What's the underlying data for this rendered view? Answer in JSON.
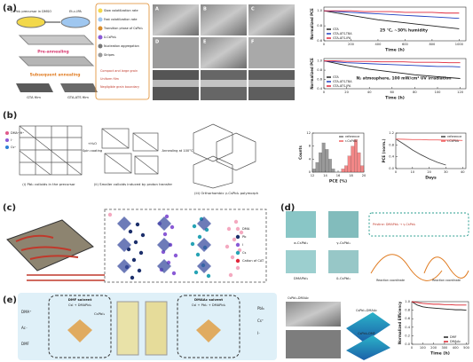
{
  "panels": {
    "a": {
      "label": "(a)",
      "precursor": "CsPbI₃ precursor in DMSO",
      "antisolvent": "Et-c-IPA",
      "pre": "Pre-annealing",
      "sub": "Subsequent annealing",
      "film1": "GTA film",
      "film2": "GTA-ATS film",
      "legend": [
        "Slow volatilization rate",
        "Fast volatilization rate",
        "Transition phase of CsPbI₃",
        "δ-CsPbI₃",
        "Nucleation aggregation",
        "Stripes"
      ],
      "outcomes": [
        "Compact and large grain",
        "Uniform film",
        "Negligible grain boundary"
      ],
      "sem": [
        "A",
        "B",
        "C",
        "D",
        "E",
        "F"
      ]
    },
    "b": {
      "label": "(b)",
      "steps": [
        "(i) PbI₂ colloids in the precursor",
        "(ii) Smaller colloids induced by proton transfer",
        "(iii) Orthorhombic γ-CsPbI₃ polymorph"
      ],
      "arrows": [
        "+H₂O",
        "Spin coating",
        "Annealing at 100°C"
      ],
      "ions": [
        "DMA⁺/H⁺",
        "I⁻",
        "Cs⁺"
      ]
    },
    "c": {
      "label": "(c)",
      "legend": [
        "DMA",
        "Pb",
        "I",
        "Cs",
        "Cation of CAT"
      ]
    },
    "d": {
      "label": "(d)",
      "phases": [
        "α-CsPbI₃",
        "γ-CsPbI₃",
        "DMAPbI₃",
        "δ-CsPbI₃"
      ],
      "route": "Pristine: DMAPbI₃ → γ-CsPbI₃",
      "xaxis": "Reaction coordinate"
    },
    "e": {
      "label": "(e)",
      "left_solvent": "DMF solvent",
      "left_mix": "CsI + DMAPbI₃",
      "right_solvent": "DMAAc solvent",
      "right_mix": "CsI + PbI₂ + DMAPbI₃",
      "species": [
        "DMA⁺",
        "Ac⁻",
        "DMF"
      ],
      "product": "CsPbI₃",
      "key": [
        "PbI₆",
        "Cs⁺",
        "I⁻"
      ],
      "sem": [
        "CsPbI₃-DMAAc",
        "CsPbI₃-DMF"
      ]
    }
  },
  "charts": [
    {
      "type": "line",
      "ylabel": "Normalized PCE",
      "xlabel": "Time (h)",
      "annotation": "25 °C, ~30% humidity",
      "legend": "lower left",
      "x": [
        0,
        100,
        200,
        300,
        400,
        500,
        600,
        700,
        800,
        900,
        1000
      ],
      "xlim": [
        0,
        1050
      ],
      "xticks": [
        0,
        200,
        400,
        600,
        800,
        1000
      ],
      "ylim": [
        0.6,
        1.05
      ],
      "yticks": [
        0.6,
        0.8,
        {
          "value": 1,
          "label": "1.0"
        }
      ],
      "series": [
        {
          "name": "GTA",
          "color": "#222222",
          "values": [
            1,
            0.97,
            0.94,
            0.91,
            0.88,
            0.86,
            0.84,
            0.82,
            0.8,
            0.78,
            0.76
          ]
        },
        {
          "name": "GTA-ATS-TBA",
          "color": "#1f3fbf",
          "values": [
            1,
            0.99,
            0.98,
            0.97,
            0.96,
            0.95,
            0.94,
            0.93,
            0.92,
            0.91,
            0.9
          ]
        },
        {
          "name": "GTA-ATS-IPA",
          "color": "#e0263a",
          "values": [
            1,
            1,
            1,
            0.99,
            0.99,
            0.99,
            0.98,
            0.98,
            0.98,
            0.97,
            0.97
          ]
        }
      ]
    },
    {
      "type": "line",
      "ylabel": "Normalized PCE",
      "xlabel": "Time (h)",
      "annotation": "N₂ atmosphere, 100 mW/cm² UV irradiation",
      "legend": "lower left",
      "x": [
        0,
        10,
        20,
        30,
        40,
        50,
        60,
        70,
        80,
        90,
        100,
        110,
        120
      ],
      "xlim": [
        0,
        125
      ],
      "xticks": [
        0,
        20,
        40,
        60,
        80,
        100,
        120
      ],
      "ylim": [
        0.4,
        1.05
      ],
      "yticks": [
        0.4,
        0.6,
        0.8,
        {
          "value": 1,
          "label": "1.0"
        }
      ],
      "series": [
        {
          "name": "GTA",
          "color": "#222222",
          "values": [
            1,
            0.95,
            0.9,
            0.86,
            0.82,
            0.79,
            0.76,
            0.73,
            0.7,
            0.68,
            0.66,
            0.64,
            0.62
          ]
        },
        {
          "name": "GTA-ATS-TBA",
          "color": "#1f3fbf",
          "values": [
            1,
            0.98,
            0.96,
            0.95,
            0.94,
            0.93,
            0.92,
            0.91,
            0.9,
            0.89,
            0.88,
            0.88,
            0.87
          ]
        },
        {
          "name": "GTA-ATS-IPA",
          "color": "#e0263a",
          "values": [
            1,
            1,
            0.99,
            0.99,
            0.99,
            0.98,
            0.98,
            0.98,
            0.97,
            0.97,
            0.97,
            0.96,
            0.96
          ]
        }
      ]
    },
    {
      "type": "histogram",
      "ylabel": "Counts",
      "xlabel": "PCE (%)",
      "legend": "upper right",
      "bins": [
        12,
        12.5,
        13,
        13.5,
        14,
        14.5,
        15,
        15.5,
        16,
        16.5,
        17,
        17.5,
        18,
        18.5,
        19,
        19.5,
        20
      ],
      "xlim": [
        12,
        20
      ],
      "xticks": [
        12,
        14,
        16,
        18,
        20
      ],
      "ylim": [
        0,
        12
      ],
      "yticks": [
        0,
        4,
        8,
        12
      ],
      "series": [
        {
          "name": "reference",
          "color": "#777777",
          "values": [
            1,
            3,
            6,
            9,
            7,
            4,
            1,
            0,
            0,
            0,
            0,
            0,
            0,
            0,
            0,
            0
          ]
        },
        {
          "name": "r-CsPbI₃",
          "color": "#f06060",
          "values": [
            0,
            0,
            0,
            0,
            0,
            0,
            0,
            0,
            0,
            1,
            2,
            5,
            8,
            10,
            6,
            2
          ]
        }
      ]
    },
    {
      "type": "line",
      "ylabel": "PCE (norm.)",
      "xlabel": "Days",
      "legend": "upper right",
      "x": [
        0,
        5,
        10,
        15,
        20,
        25,
        30,
        35,
        40
      ],
      "xlim": [
        0,
        42
      ],
      "xticks": [
        0,
        10,
        20,
        30,
        40
      ],
      "ylim": [
        0,
        1.2
      ],
      "yticks": [
        {
          "value": 0,
          "label": "0.0"
        },
        0.4,
        0.8,
        1.2
      ],
      "series": [
        {
          "name": "reference",
          "color": "#444444",
          "values": [
            1,
            0.82,
            0.63,
            0.47,
            0.33,
            0.21,
            0.12,
            null,
            null
          ]
        },
        {
          "name": "r-CsPbI₃",
          "color": "#f06060",
          "values": [
            1,
            0.99,
            0.98,
            0.98,
            0.97,
            0.97,
            0.96,
            0.96,
            0.95
          ]
        }
      ]
    },
    {
      "type": "line",
      "ylabel": "Normalized Efficiency",
      "xlabel": "Time (h)",
      "legend": "lower right",
      "x": [
        0,
        50,
        100,
        150,
        200,
        250,
        300,
        350,
        400,
        450,
        500
      ],
      "xlim": [
        0,
        520
      ],
      "xticks": [
        0,
        100,
        200,
        300,
        400,
        500
      ],
      "ylim": [
        0,
        1
      ],
      "yticks": [
        {
          "value": 0,
          "label": "0.0"
        },
        0.2,
        0.4,
        0.6,
        0.8,
        {
          "value": 1,
          "label": "1.0"
        }
      ],
      "series": [
        {
          "name": "DMF",
          "color": "#222222",
          "values": [
            1,
            0.92,
            0.88,
            0.86,
            0.85,
            0.84,
            0.83,
            0.82,
            0.81,
            0.81,
            0.8
          ]
        },
        {
          "name": "DMAAc",
          "color": "#d9232d",
          "values": [
            1,
            0.98,
            0.96,
            0.95,
            0.94,
            0.94,
            0.93,
            0.93,
            0.92,
            0.92,
            0.92
          ]
        }
      ]
    }
  ]
}
